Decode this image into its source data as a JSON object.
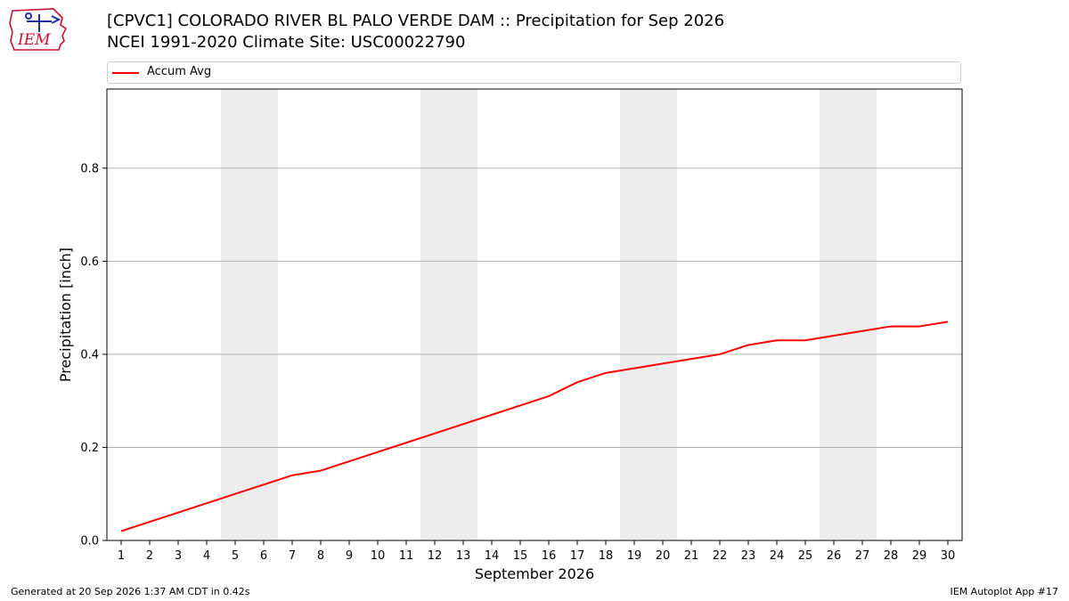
{
  "logo": {
    "text": "IEM",
    "icon": "iowa-state-weather-logo"
  },
  "header": {
    "title_line1": "[CPVC1] COLORADO RIVER BL PALO VERDE DAM :: Precipitation for Sep 2026",
    "title_line2": "NCEI 1991-2020 Climate Site: USC00022790"
  },
  "footer": {
    "generated": "Generated at 20 Sep 2026 1:37 AM CDT in 0.42s",
    "app": "IEM Autoplot App #17"
  },
  "chart_data": {
    "type": "line",
    "xlabel": "September 2026",
    "ylabel": "Precipitation [inch]",
    "xlim": [
      0.5,
      30.5
    ],
    "ylim": [
      0,
      0.97
    ],
    "yticks": [
      0.0,
      0.2,
      0.4,
      0.6,
      0.8
    ],
    "ytick_labels": [
      "0.0",
      "0.2",
      "0.4",
      "0.6",
      "0.8"
    ],
    "xticks": [
      1,
      2,
      3,
      4,
      5,
      6,
      7,
      8,
      9,
      10,
      11,
      12,
      13,
      14,
      15,
      16,
      17,
      18,
      19,
      20,
      21,
      22,
      23,
      24,
      25,
      26,
      27,
      28,
      29,
      30
    ],
    "grid": "horizontal",
    "legend_placement": "top",
    "weekend_days": [
      5,
      6,
      12,
      13,
      19,
      20,
      26,
      27
    ],
    "weekend_color": "#ededed",
    "series": [
      {
        "name": "Accum Avg",
        "color": "#ff0000",
        "x": [
          1,
          2,
          3,
          4,
          5,
          6,
          7,
          8,
          9,
          10,
          11,
          12,
          13,
          14,
          15,
          16,
          17,
          18,
          19,
          20,
          21,
          22,
          23,
          24,
          25,
          26,
          27,
          28,
          29,
          30
        ],
        "values": [
          0.02,
          0.04,
          0.06,
          0.08,
          0.1,
          0.12,
          0.14,
          0.15,
          0.17,
          0.19,
          0.21,
          0.23,
          0.25,
          0.27,
          0.29,
          0.31,
          0.34,
          0.36,
          0.37,
          0.38,
          0.39,
          0.4,
          0.42,
          0.43,
          0.43,
          0.44,
          0.45,
          0.46,
          0.46,
          0.47
        ]
      }
    ]
  }
}
